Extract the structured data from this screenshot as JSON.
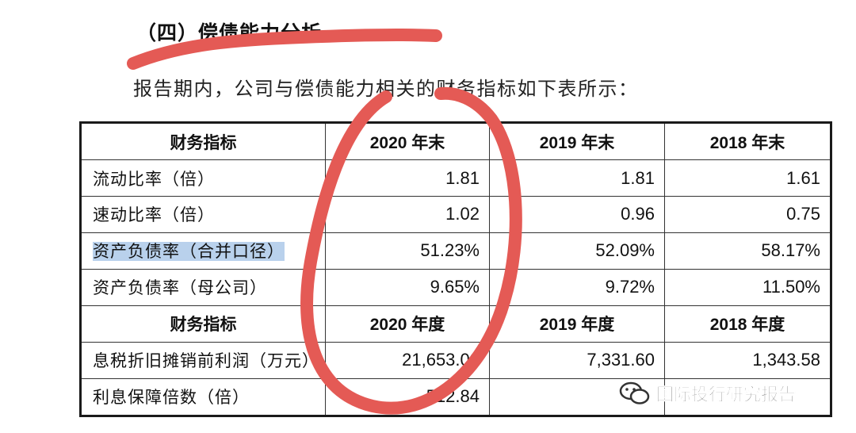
{
  "section_heading": "（四）偿债能力分析",
  "intro_text": "报告期内，公司与偿债能力相关的财务指标如下表所示：",
  "table": {
    "header1": [
      "财务指标",
      "2020 年末",
      "2019 年末",
      "2018 年末"
    ],
    "rows1": [
      {
        "label": "流动比率（倍）",
        "values": [
          "1.81",
          "1.81",
          "1.61"
        ]
      },
      {
        "label": "速动比率（倍）",
        "values": [
          "1.02",
          "0.96",
          "0.75"
        ]
      },
      {
        "label": "资产负债率（合并口径）",
        "values": [
          "51.23%",
          "52.09%",
          "58.17%"
        ]
      },
      {
        "label": "资产负债率（母公司）",
        "values": [
          "9.65%",
          "9.72%",
          "11.50%"
        ]
      }
    ],
    "header2": [
      "财务指标",
      "2020 年度",
      "2019 年度",
      "2018 年度"
    ],
    "rows2": [
      {
        "label": "息税折旧摊销前利润（万元）",
        "values": [
          "21,653.09",
          "7,331.60",
          "1,343.58"
        ]
      },
      {
        "label": "利息保障倍数（倍）",
        "values": [
          "512.84",
          "",
          ""
        ]
      }
    ]
  },
  "watermark_text": "国际投行研究报告",
  "annotation_color": "#e45a55",
  "highlight_color": "#b9d1ec"
}
